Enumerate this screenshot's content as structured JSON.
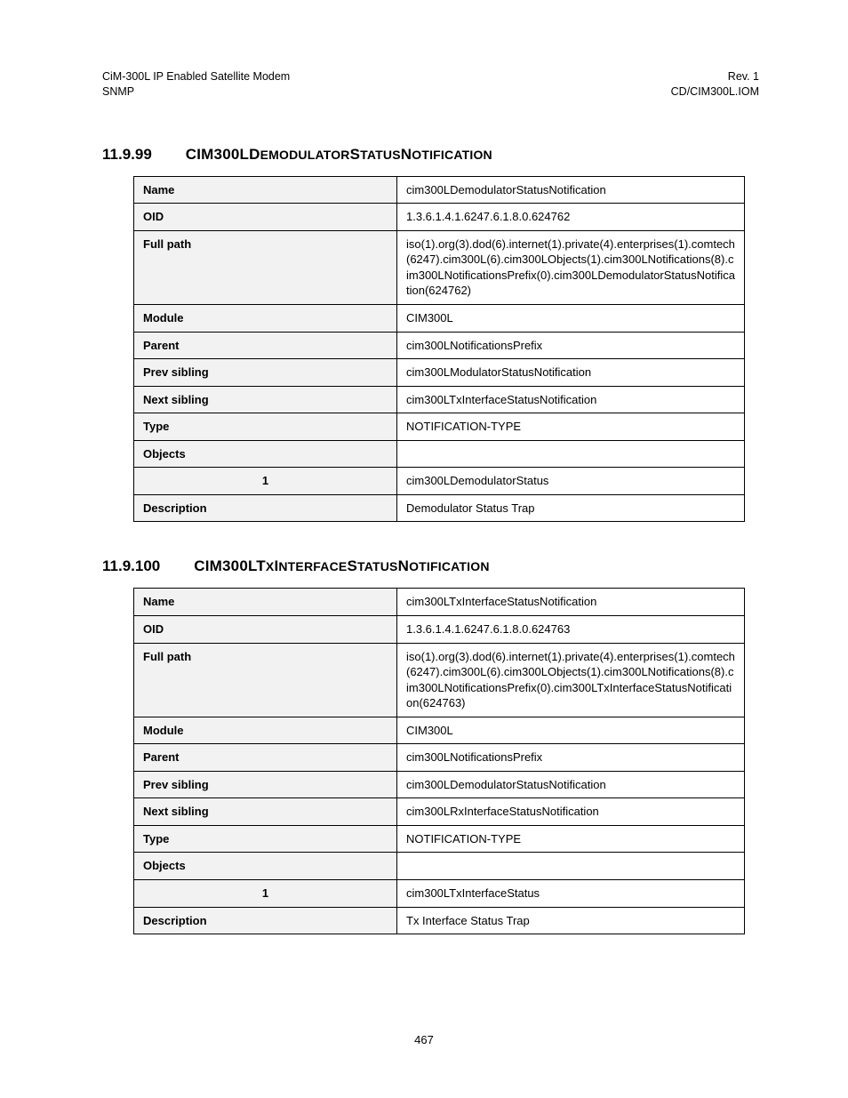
{
  "header": {
    "left_line1": "CiM-300L IP Enabled Satellite Modem",
    "left_line2": "SNMP",
    "right_line1": "Rev. 1",
    "right_line2": "CD/CIM300L.IOM"
  },
  "sections": [
    {
      "number": "11.9.99",
      "title_parts": [
        "CIM300LD",
        "EMODULATOR",
        "S",
        "TATUS",
        "N",
        "OTIFICATION"
      ],
      "rows": [
        {
          "label": "Name",
          "value": "cim300LDemodulatorStatusNotification"
        },
        {
          "label": "OID",
          "value": "1.3.6.1.4.1.6247.6.1.8.0.624762"
        },
        {
          "label": "Full path",
          "value": "iso(1).org(3).dod(6).internet(1).private(4).enterprises(1).comtech(6247).cim300L(6).cim300LObjects(1).cim300LNotifications(8).cim300LNotificationsPrefix(0).cim300LDemodulatorStatusNotification(624762)"
        },
        {
          "label": "Module",
          "value": "CIM300L"
        },
        {
          "label": "Parent",
          "value": "cim300LNotificationsPrefix"
        },
        {
          "label": "Prev sibling",
          "value": "cim300LModulatorStatusNotification"
        },
        {
          "label": "Next sibling",
          "value": "cim300LTxInterfaceStatusNotification"
        },
        {
          "label": "Type",
          "value": "NOTIFICATION-TYPE"
        },
        {
          "label": "Objects",
          "value": ""
        },
        {
          "label": "1",
          "value": "cim300LDemodulatorStatus",
          "indent": true
        },
        {
          "label": "Description",
          "value": "Demodulator Status Trap"
        }
      ]
    },
    {
      "number": "11.9.100",
      "title_parts": [
        "CIM300LT",
        "X",
        "I",
        "NTERFACE",
        "S",
        "TATUS",
        "N",
        "OTIFICATION"
      ],
      "rows": [
        {
          "label": "Name",
          "value": "cim300LTxInterfaceStatusNotification"
        },
        {
          "label": "OID",
          "value": "1.3.6.1.4.1.6247.6.1.8.0.624763"
        },
        {
          "label": "Full path",
          "value": "iso(1).org(3).dod(6).internet(1).private(4).enterprises(1).comtech(6247).cim300L(6).cim300LObjects(1).cim300LNotifications(8).cim300LNotificationsPrefix(0).cim300LTxInterfaceStatusNotification(624763)"
        },
        {
          "label": "Module",
          "value": "CIM300L"
        },
        {
          "label": "Parent",
          "value": "cim300LNotificationsPrefix"
        },
        {
          "label": "Prev sibling",
          "value": "cim300LDemodulatorStatusNotification"
        },
        {
          "label": "Next sibling",
          "value": "cim300LRxInterfaceStatusNotification"
        },
        {
          "label": "Type",
          "value": "NOTIFICATION-TYPE"
        },
        {
          "label": "Objects",
          "value": ""
        },
        {
          "label": "1",
          "value": "cim300LTxInterfaceStatus",
          "indent": true
        },
        {
          "label": "Description",
          "value": "Tx Interface Status Trap"
        }
      ]
    }
  ],
  "footer": {
    "page_number": "467"
  }
}
